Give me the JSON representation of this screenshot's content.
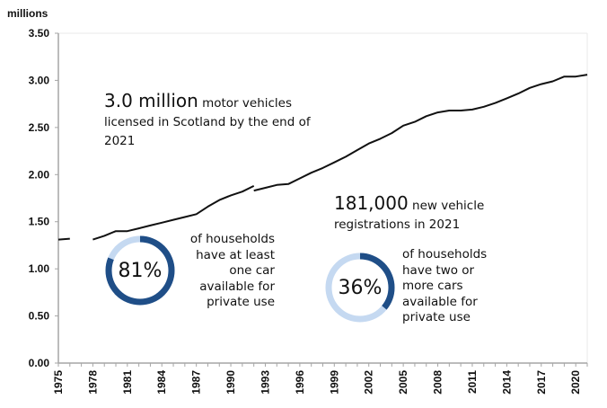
{
  "chart_data": {
    "type": "line",
    "title": "",
    "ylabel": "millions",
    "xlabel": "",
    "ylim": [
      0,
      3.5
    ],
    "xlim": [
      1975,
      2021
    ],
    "grid": false,
    "yticks": [
      "0.00",
      "0.50",
      "1.00",
      "1.50",
      "2.00",
      "2.50",
      "3.00",
      "3.50"
    ],
    "ytick_values": [
      0,
      0.5,
      1.0,
      1.5,
      2.0,
      2.5,
      3.0,
      3.5
    ],
    "xticks": [
      "1975",
      "1978",
      "1981",
      "1984",
      "1987",
      "1990",
      "1993",
      "1996",
      "1999",
      "2002",
      "2005",
      "2008",
      "2011",
      "2014",
      "2017",
      "2020"
    ],
    "series": [
      {
        "name": "Licensed motor vehicles (segment 1)",
        "x": [
          1975,
          1976
        ],
        "values": [
          1.31,
          1.32
        ]
      },
      {
        "name": "Licensed motor vehicles (segment 2)",
        "x": [
          1978,
          1979,
          1980,
          1981,
          1982,
          1983,
          1984,
          1985,
          1986,
          1987,
          1988,
          1989,
          1990,
          1991,
          1992
        ],
        "values": [
          1.31,
          1.35,
          1.4,
          1.4,
          1.43,
          1.46,
          1.49,
          1.52,
          1.55,
          1.58,
          1.66,
          1.73,
          1.78,
          1.82,
          1.88
        ]
      },
      {
        "name": "Licensed motor vehicles (segment 3)",
        "x": [
          1992,
          1993,
          1994,
          1995,
          1996,
          1997,
          1998,
          1999,
          2000,
          2001,
          2002,
          2003,
          2004,
          2005,
          2006,
          2007,
          2008,
          2009,
          2010,
          2011,
          2012,
          2013,
          2014,
          2015,
          2016,
          2017,
          2018,
          2019,
          2020,
          2021
        ],
        "values": [
          1.83,
          1.86,
          1.89,
          1.9,
          1.96,
          2.02,
          2.07,
          2.13,
          2.19,
          2.26,
          2.33,
          2.38,
          2.44,
          2.52,
          2.56,
          2.62,
          2.66,
          2.68,
          2.68,
          2.69,
          2.72,
          2.76,
          2.81,
          2.86,
          2.92,
          2.96,
          2.99,
          3.04,
          3.04,
          3.06
        ]
      }
    ],
    "annotations": [
      {
        "highlight": "3.0 million",
        "text": "motor vehicles licensed in Scotland by the end of 2021"
      },
      {
        "highlight": "181,000",
        "text": "new vehicle registrations in 2021"
      }
    ],
    "donuts": [
      {
        "value": 81,
        "label": "81%",
        "text": "of households have at least one car available for private use"
      },
      {
        "value": 36,
        "label": "36%",
        "text": "of households have two or more cars available for private use"
      }
    ]
  },
  "colors": {
    "line": "#111111",
    "axis": "#a6a6a6",
    "donut_fill": "#1f4e87",
    "donut_track": "#c5d9f1"
  },
  "text": {
    "unit_label": "millions",
    "ann1_big": "3.0 million",
    "ann1_rest": " motor vehicles licensed in Scotland by the end of 2021",
    "ann2_big": "181,000",
    "ann2_rest": " new vehicle registrations in 2021",
    "donut1_label": "81%",
    "donut1_text_lines": [
      "of households",
      "have at least",
      "one car",
      "available for",
      "private use"
    ],
    "donut2_label": "36%",
    "donut2_text_lines": [
      "of households",
      "have two or",
      "more cars",
      "available for",
      "private use"
    ]
  }
}
